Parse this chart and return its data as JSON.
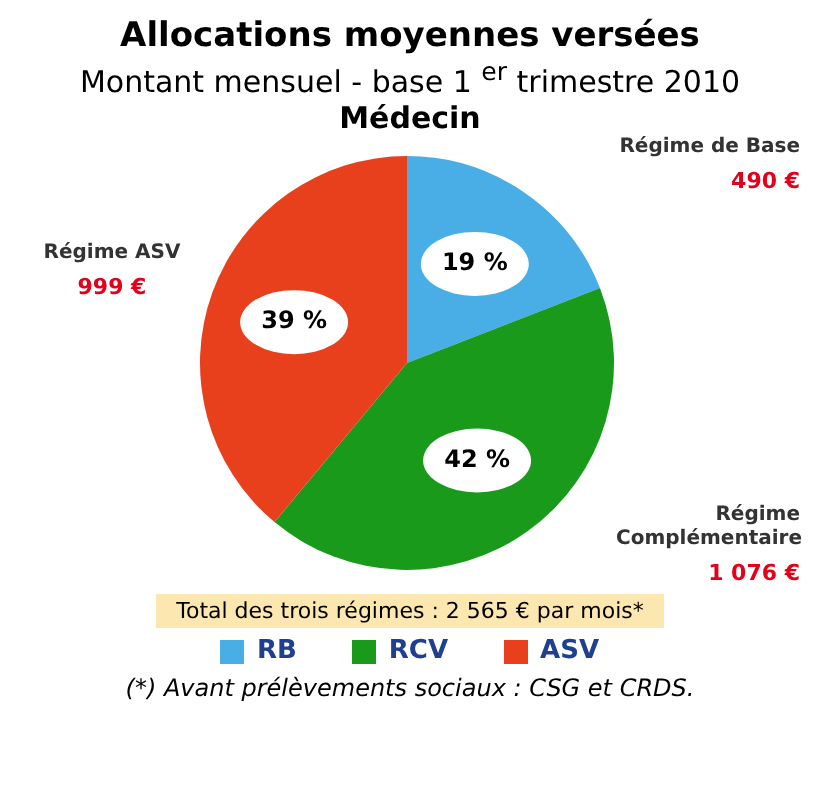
{
  "chart_data": {
    "type": "pie",
    "title": "Allocations moyennes versées",
    "subtitle": "Montant mensuel - base 1 $^{er}$ trimestre 2010",
    "categories": [
      "RB",
      "RCV",
      "ASV"
    ],
    "values": [
      490,
      1076,
      999
    ],
    "value_labels": [
      "490 €",
      "1 076 €",
      "999 €"
    ],
    "colors": [
      "#4aaee6",
      "#1a9a1a",
      "#e8401c"
    ],
    "legend": "bottom",
    "annotations": [
      "Médecin",
      "Total des trois régimes : 2 565 € par mois*",
      "(*) Avant prélèvements sociaux : CSG et CRDS.",
      {
        "text": "Régime de Base",
        "x": "RB"
      },
      {
        "text": "Régime Complémentaire",
        "x": "RCV"
      },
      {
        "text": "Régime ASV",
        "x": "ASV"
      },
      {
        "text": "19 %",
        "x": "RB"
      },
      {
        "text": "42 %",
        "x": "RCV"
      },
      {
        "text": "39 %",
        "x": "ASV"
      }
    ]
  }
}
